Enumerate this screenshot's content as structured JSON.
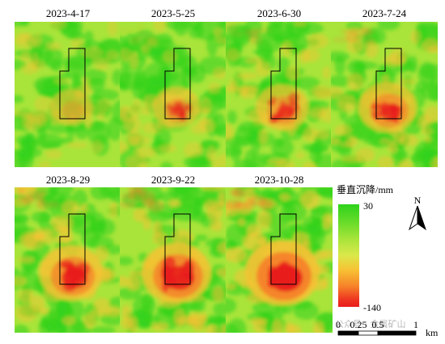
{
  "panels": [
    {
      "date": "2023-4-17",
      "stage": 0
    },
    {
      "date": "2023-5-25",
      "stage": 1
    },
    {
      "date": "2023-6-30",
      "stage": 2
    },
    {
      "date": "2023-7-24",
      "stage": 3
    },
    {
      "date": "2023-8-29",
      "stage": 4
    },
    {
      "date": "2023-9-22",
      "stage": 5
    },
    {
      "date": "2023-10-28",
      "stage": 6
    }
  ],
  "legend": {
    "title": "垂直沉降/mm",
    "max_label": "30",
    "min_label": "-140",
    "colors": [
      "#2fd21c",
      "#a8e43a",
      "#f7c233",
      "#f6822a",
      "#e81c1c"
    ]
  },
  "north_arrow": {
    "label": "N"
  },
  "scale_bar": {
    "tick_labels": [
      "0",
      "0.25",
      "0.5",
      "1"
    ],
    "unit": "km"
  },
  "watermark": "公众号 · 金属矿山"
}
